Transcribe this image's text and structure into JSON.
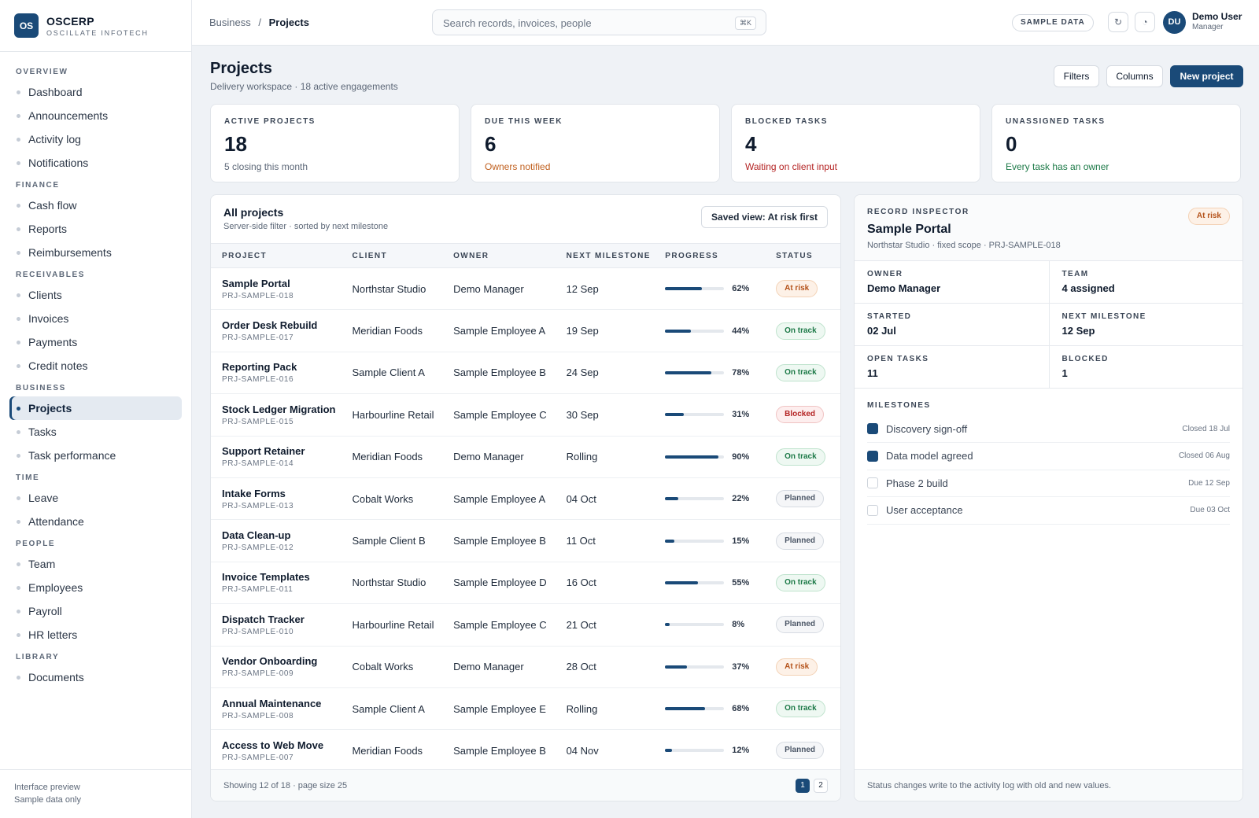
{
  "brand": {
    "logo": "OS",
    "name": "OSCERP",
    "sub": "OSCILLATE INFOTECH"
  },
  "nav": [
    {
      "section": "OVERVIEW",
      "items": [
        "Dashboard",
        "Announcements",
        "Activity log",
        "Notifications"
      ]
    },
    {
      "section": "FINANCE",
      "items": [
        "Cash flow",
        "Reports",
        "Reimbursements"
      ]
    },
    {
      "section": "RECEIVABLES",
      "items": [
        "Clients",
        "Invoices",
        "Payments",
        "Credit notes"
      ]
    },
    {
      "section": "BUSINESS",
      "items": [
        "Projects",
        "Tasks",
        "Task performance"
      ]
    },
    {
      "section": "TIME",
      "items": [
        "Leave",
        "Attendance"
      ]
    },
    {
      "section": "PEOPLE",
      "items": [
        "Team",
        "Employees",
        "Payroll",
        "HR letters"
      ]
    },
    {
      "section": "LIBRARY",
      "items": [
        "Documents"
      ]
    }
  ],
  "nav_active": "Projects",
  "sidebar_footer": {
    "line1": "Interface preview",
    "line2": "Sample data only"
  },
  "topbar": {
    "breadcrumb_parent": "Business",
    "breadcrumb_sep": "/",
    "breadcrumb_current": "Projects",
    "search_placeholder": "Search records, invoices, people",
    "search_shortcut": "⌘K",
    "sample_pill": "SAMPLE DATA",
    "refresh_icon": "↻",
    "theme_icon": "◔",
    "avatar": "DU",
    "user_name": "Demo User",
    "user_role": "Manager"
  },
  "header": {
    "title": "Projects",
    "subtitle": "Delivery workspace · 18 active engagements",
    "filters": "Filters",
    "columns": "Columns",
    "new_project": "New project"
  },
  "stats": [
    {
      "label": "ACTIVE PROJECTS",
      "value": "18",
      "note": "5 closing this month",
      "note_color": "#5d6878"
    },
    {
      "label": "DUE THIS WEEK",
      "value": "6",
      "note": "Owners notified",
      "note_color": "#c0601f"
    },
    {
      "label": "BLOCKED TASKS",
      "value": "4",
      "note": "Waiting on client input",
      "note_color": "#b42323"
    },
    {
      "label": "UNASSIGNED TASKS",
      "value": "0",
      "note": "Every task has an owner",
      "note_color": "#1d7a48"
    }
  ],
  "projects": {
    "title": "All projects",
    "subtitle": "Server-side filter · sorted by next milestone",
    "saved_view": "Saved view: At risk first",
    "columns": [
      "PROJECT",
      "CLIENT",
      "OWNER",
      "NEXT MILESTONE",
      "PROGRESS",
      "STATUS"
    ],
    "rows": [
      {
        "name": "Sample Portal",
        "id": "PRJ-SAMPLE-018",
        "client": "Northstar Studio",
        "owner": "Demo Manager",
        "milestone": "12 Sep",
        "progress": 62,
        "status": "At risk",
        "status_kind": "risk"
      },
      {
        "name": "Order Desk Rebuild",
        "id": "PRJ-SAMPLE-017",
        "client": "Meridian Foods",
        "owner": "Sample Employee A",
        "milestone": "19 Sep",
        "progress": 44,
        "status": "On track",
        "status_kind": "ontrack"
      },
      {
        "name": "Reporting Pack",
        "id": "PRJ-SAMPLE-016",
        "client": "Sample Client A",
        "owner": "Sample Employee B",
        "milestone": "24 Sep",
        "progress": 78,
        "status": "On track",
        "status_kind": "ontrack"
      },
      {
        "name": "Stock Ledger Migration",
        "id": "PRJ-SAMPLE-015",
        "client": "Harbourline Retail",
        "owner": "Sample Employee C",
        "milestone": "30 Sep",
        "progress": 31,
        "status": "Blocked",
        "status_kind": "blocked"
      },
      {
        "name": "Support Retainer",
        "id": "PRJ-SAMPLE-014",
        "client": "Meridian Foods",
        "owner": "Demo Manager",
        "milestone": "Rolling",
        "progress": 90,
        "status": "On track",
        "status_kind": "ontrack"
      },
      {
        "name": "Intake Forms",
        "id": "PRJ-SAMPLE-013",
        "client": "Cobalt Works",
        "owner": "Sample Employee A",
        "milestone": "04 Oct",
        "progress": 22,
        "status": "Planned",
        "status_kind": "planned"
      },
      {
        "name": "Data Clean-up",
        "id": "PRJ-SAMPLE-012",
        "client": "Sample Client B",
        "owner": "Sample Employee B",
        "milestone": "11 Oct",
        "progress": 15,
        "status": "Planned",
        "status_kind": "planned"
      },
      {
        "name": "Invoice Templates",
        "id": "PRJ-SAMPLE-011",
        "client": "Northstar Studio",
        "owner": "Sample Employee D",
        "milestone": "16 Oct",
        "progress": 55,
        "status": "On track",
        "status_kind": "ontrack"
      },
      {
        "name": "Dispatch Tracker",
        "id": "PRJ-SAMPLE-010",
        "client": "Harbourline Retail",
        "owner": "Sample Employee C",
        "milestone": "21 Oct",
        "progress": 8,
        "status": "Planned",
        "status_kind": "planned"
      },
      {
        "name": "Vendor Onboarding",
        "id": "PRJ-SAMPLE-009",
        "client": "Cobalt Works",
        "owner": "Demo Manager",
        "milestone": "28 Oct",
        "progress": 37,
        "status": "At risk",
        "status_kind": "risk"
      },
      {
        "name": "Annual Maintenance",
        "id": "PRJ-SAMPLE-008",
        "client": "Sample Client A",
        "owner": "Sample Employee E",
        "milestone": "Rolling",
        "progress": 68,
        "status": "On track",
        "status_kind": "ontrack"
      },
      {
        "name": "Access to Web Move",
        "id": "PRJ-SAMPLE-007",
        "client": "Meridian Foods",
        "owner": "Sample Employee B",
        "milestone": "04 Nov",
        "progress": 12,
        "status": "Planned",
        "status_kind": "planned"
      }
    ],
    "footer": "Showing 12 of 18 · page size 25",
    "pages": [
      "1",
      "2"
    ],
    "current_page": "1"
  },
  "inspector": {
    "label": "RECORD INSPECTOR",
    "title": "Sample Portal",
    "subtitle": "Northstar Studio · fixed scope · PRJ-SAMPLE-018",
    "status": "At risk",
    "status_kind": "risk",
    "fields": [
      {
        "label": "OWNER",
        "value": "Demo Manager"
      },
      {
        "label": "TEAM",
        "value": "4 assigned"
      },
      {
        "label": "STARTED",
        "value": "02 Jul"
      },
      {
        "label": "NEXT MILESTONE",
        "value": "12 Sep"
      },
      {
        "label": "OPEN TASKS",
        "value": "11"
      },
      {
        "label": "BLOCKED",
        "value": "1"
      }
    ],
    "milestones_label": "MILESTONES",
    "milestones": [
      {
        "name": "Discovery sign-off",
        "date": "Closed 18 Jul",
        "done": true
      },
      {
        "name": "Data model agreed",
        "date": "Closed 06 Aug",
        "done": true
      },
      {
        "name": "Phase 2 build",
        "date": "Due 12 Sep",
        "done": false
      },
      {
        "name": "User acceptance",
        "date": "Due 03 Oct",
        "done": false
      }
    ],
    "footer": "Status changes write to the activity log with old and new values."
  }
}
